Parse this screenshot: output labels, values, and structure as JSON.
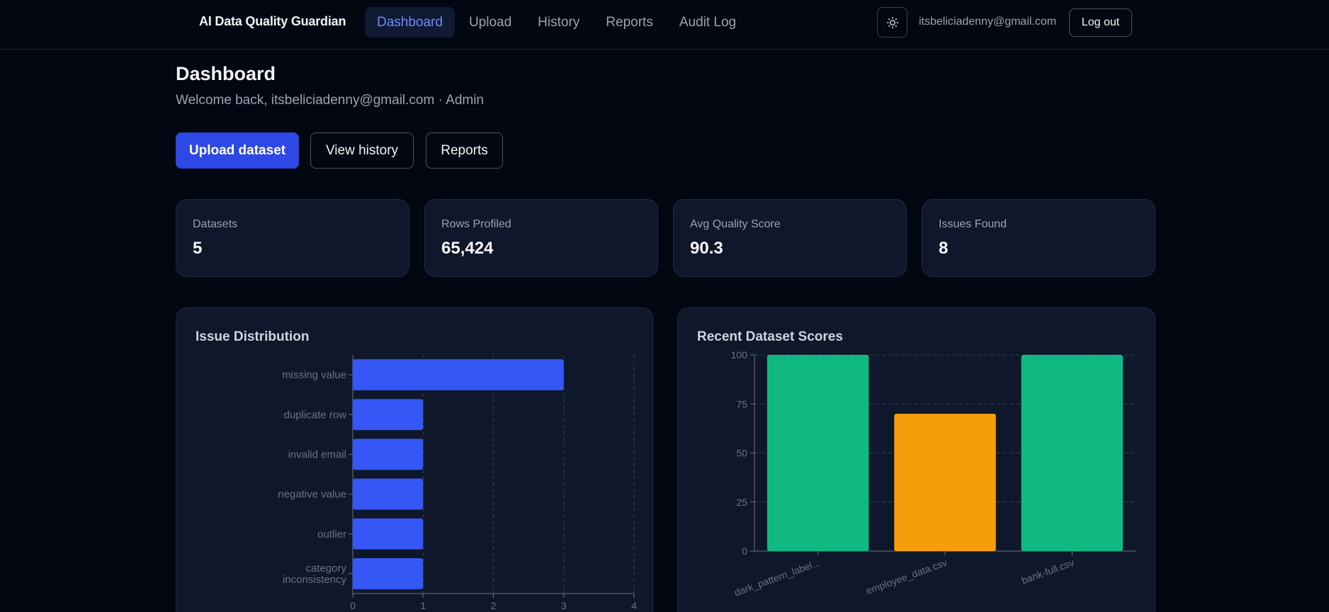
{
  "nav": {
    "brand": "AI Data Quality Guardian",
    "items": [
      {
        "label": "Dashboard",
        "active": true
      },
      {
        "label": "Upload",
        "active": false
      },
      {
        "label": "History",
        "active": false
      },
      {
        "label": "Reports",
        "active": false
      },
      {
        "label": "Audit Log",
        "active": false
      }
    ],
    "theme_icon": "sun-icon",
    "user_email": "itsbeliciadenny@gmail.com",
    "logout_label": "Log out"
  },
  "header": {
    "title": "Dashboard",
    "welcome": "Welcome back, itsbeliciadenny@gmail.com · Admin"
  },
  "actions": {
    "upload_label": "Upload dataset",
    "history_label": "View history",
    "reports_label": "Reports"
  },
  "stats": [
    {
      "label": "Datasets",
      "value": "5"
    },
    {
      "label": "Rows Profiled",
      "value": "65,424"
    },
    {
      "label": "Avg Quality Score",
      "value": "90.3"
    },
    {
      "label": "Issues Found",
      "value": "8"
    }
  ],
  "colors": {
    "accent": "#2e48e6",
    "bar_blue": "#3457f5",
    "bar_green": "#10b981",
    "bar_orange": "#f59e0b"
  },
  "chart_data": [
    {
      "type": "bar",
      "orientation": "horizontal",
      "title": "Issue Distribution",
      "categories": [
        "missing value",
        "duplicate row",
        "invalid email",
        "negative value",
        "outlier",
        "category inconsistency"
      ],
      "values": [
        3,
        1,
        1,
        1,
        1,
        1
      ],
      "xlim": [
        0,
        4
      ],
      "xticks": [
        "0",
        "1",
        "2",
        "3",
        "4"
      ],
      "grid": true,
      "color": "#3457f5"
    },
    {
      "type": "bar",
      "title": "Recent Dataset Scores",
      "categories": [
        "dark_pattern_label...",
        "employee_data.csv",
        "bank-full.csv"
      ],
      "values": [
        100,
        70,
        100
      ],
      "colors": [
        "#10b981",
        "#f59e0b",
        "#10b981"
      ],
      "ylim": [
        0,
        100
      ],
      "yticks": [
        "0",
        "25",
        "50",
        "75",
        "100"
      ],
      "grid": true
    }
  ]
}
